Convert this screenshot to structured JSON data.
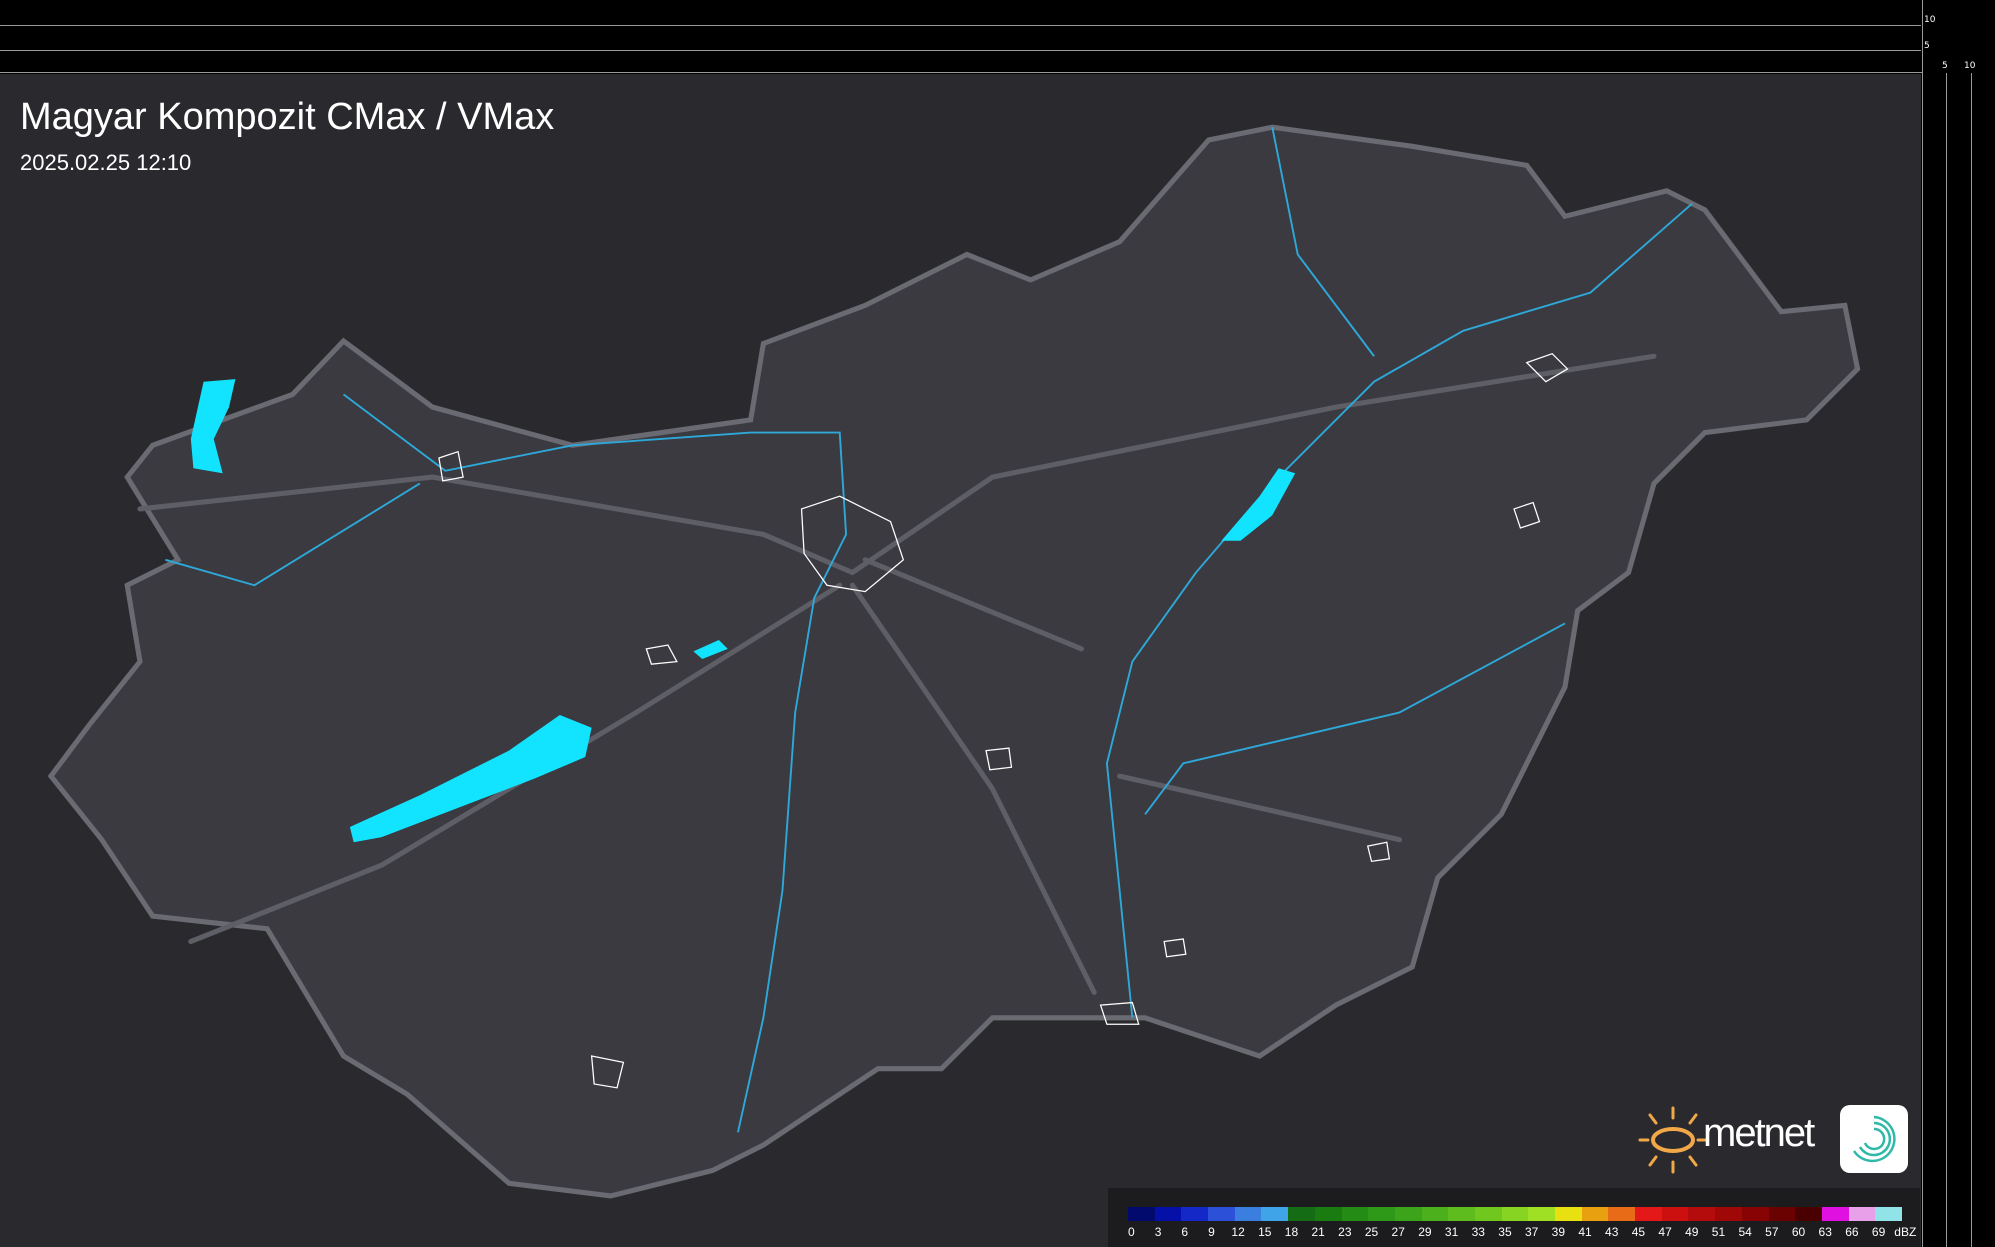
{
  "title": "Magyar Kompozit CMax / VMax",
  "datetime": "2025.02.25 12:10",
  "axis": {
    "vertical_ticks": [
      "10",
      "5"
    ],
    "horizontal_ticks": [
      "5",
      "10"
    ]
  },
  "legend": {
    "unit": "dBZ",
    "labels": [
      "0",
      "3",
      "6",
      "9",
      "12",
      "15",
      "18",
      "21",
      "23",
      "25",
      "27",
      "29",
      "31",
      "33",
      "35",
      "37",
      "39",
      "41",
      "43",
      "45",
      "47",
      "49",
      "51",
      "54",
      "57",
      "60",
      "63",
      "66",
      "69"
    ],
    "colors": [
      "#020a6e",
      "#0410a8",
      "#1428c8",
      "#2c50d8",
      "#3a7ee0",
      "#40a4e8",
      "#146c14",
      "#1a7c10",
      "#248c14",
      "#2e9818",
      "#3ca41a",
      "#4cb01c",
      "#5ebc1e",
      "#70c81e",
      "#88d422",
      "#a0e024",
      "#e8e010",
      "#e8a010",
      "#e86c18",
      "#e41818",
      "#cc1010",
      "#b40c0c",
      "#a00808",
      "#880404",
      "#6a0202",
      "#4a0000",
      "#e010e0",
      "#e8a0e8",
      "#90e4e8"
    ]
  },
  "logo": {
    "text": "metnet"
  },
  "colors": {
    "country_fill": "#3a3a40",
    "border": "#6a6a70",
    "river": "#2ea8d8",
    "lake": "#12e4ff",
    "city": "#ffffff"
  }
}
